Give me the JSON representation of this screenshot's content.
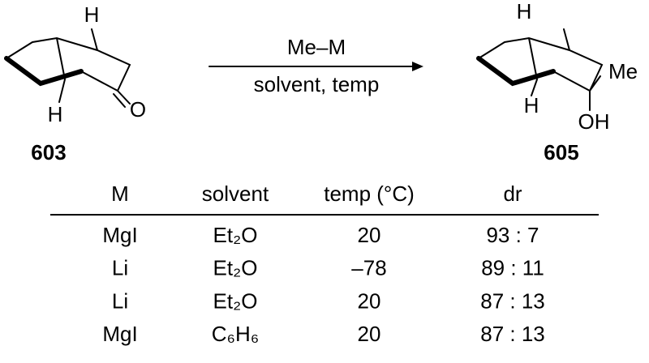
{
  "scheme": {
    "starting_material": {
      "label": "603",
      "atoms": [
        "H",
        "H",
        "O"
      ]
    },
    "product": {
      "label": "605",
      "atoms": [
        "H",
        "Me",
        "H",
        "OH"
      ]
    },
    "reagent": "Me–M",
    "conditions": "solvent, temp"
  },
  "table": {
    "header": [
      "M",
      "solvent",
      "temp (°C)",
      "dr"
    ],
    "rows": [
      [
        "MgI",
        "Et₂O",
        "20",
        "93 : 7"
      ],
      [
        "Li",
        "Et₂O",
        "–78",
        "89 : 11"
      ],
      [
        "Li",
        "Et₂O",
        "20",
        "87 : 13"
      ],
      [
        "MgI",
        "C₆H₆",
        "20",
        "87 : 13"
      ]
    ]
  }
}
